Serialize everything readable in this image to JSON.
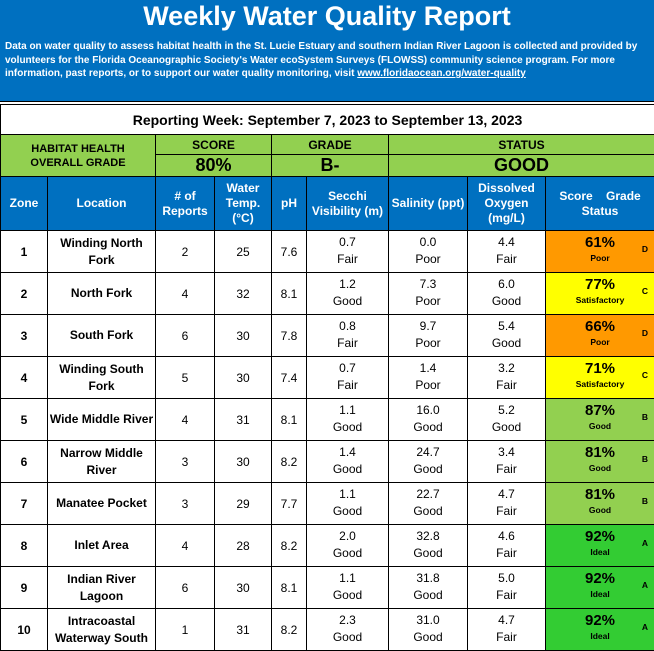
{
  "header": {
    "title": "Weekly Water Quality Report",
    "description": "Data on water quality to assess habitat health in the St. Lucie Estuary and southern Indian River Lagoon is collected and provided by volunteers for the Florida Oceanographic Society's Water ecoSystem Surveys (FLOWSS) community science program.  For more information, past reports, or to support our water quality monitoring, visit ",
    "link": "www.floridaocean.org/water-quality"
  },
  "reporting_week": "Reporting Week: September 7, 2023 to September 13, 2023",
  "summary": {
    "habitat_label_1": "HABITAT HEALTH",
    "habitat_label_2": "OVERALL GRADE",
    "score_label": "SCORE",
    "score_value": "80%",
    "grade_label": "GRADE",
    "grade_value": "B-",
    "status_label": "STATUS",
    "status_value": "GOOD"
  },
  "columns": {
    "zone": "Zone",
    "location": "Location",
    "reports_1": "# of",
    "reports_2": "Reports",
    "temp_1": "Water",
    "temp_2": "Temp.",
    "temp_3": "(°C)",
    "ph": "pH",
    "secchi_1": "Secchi",
    "secchi_2": "Visibility (m)",
    "salinity": "Salinity (ppt)",
    "do_1": "Dissolved",
    "do_2": "Oxygen",
    "do_3": "(mg/L)",
    "score_1": "Score",
    "score_2": "Grade",
    "score_3": "Status"
  },
  "colors": {
    "header_blue": "#0070c0",
    "summary_green": "#92d050",
    "ideal": "#33cc33",
    "good": "#92d050",
    "satisfactory": "#ffff00",
    "poor": "#ff9900"
  },
  "rows": [
    {
      "zone": "1",
      "location": "Winding North Fork",
      "reports": "2",
      "temp": "25",
      "ph": "7.6",
      "secchi": "0.7",
      "secchi_q": "Fair",
      "salinity": "0.0",
      "salinity_q": "Poor",
      "do": "4.4",
      "do_q": "Fair",
      "score": "61%",
      "grade": "D",
      "status": "Poor",
      "status_color": "#ff9900"
    },
    {
      "zone": "2",
      "location": "North Fork",
      "reports": "4",
      "temp": "32",
      "ph": "8.1",
      "secchi": "1.2",
      "secchi_q": "Good",
      "salinity": "7.3",
      "salinity_q": "Poor",
      "do": "6.0",
      "do_q": "Good",
      "score": "77%",
      "grade": "C",
      "status": "Satisfactory",
      "status_color": "#ffff00"
    },
    {
      "zone": "3",
      "location": "South Fork",
      "reports": "6",
      "temp": "30",
      "ph": "7.8",
      "secchi": "0.8",
      "secchi_q": "Fair",
      "salinity": "9.7",
      "salinity_q": "Poor",
      "do": "5.4",
      "do_q": "Good",
      "score": "66%",
      "grade": "D",
      "status": "Poor",
      "status_color": "#ff9900"
    },
    {
      "zone": "4",
      "location": "Winding South Fork",
      "reports": "5",
      "temp": "30",
      "ph": "7.4",
      "secchi": "0.7",
      "secchi_q": "Fair",
      "salinity": "1.4",
      "salinity_q": "Poor",
      "do": "3.2",
      "do_q": "Fair",
      "score": "71%",
      "grade": "C",
      "status": "Satisfactory",
      "status_color": "#ffff00"
    },
    {
      "zone": "5",
      "location": "Wide Middle River",
      "reports": "4",
      "temp": "31",
      "ph": "8.1",
      "secchi": "1.1",
      "secchi_q": "Good",
      "salinity": "16.0",
      "salinity_q": "Good",
      "do": "5.2",
      "do_q": "Good",
      "score": "87%",
      "grade": "B",
      "status": "Good",
      "status_color": "#92d050"
    },
    {
      "zone": "6",
      "location": "Narrow Middle River",
      "reports": "3",
      "temp": "30",
      "ph": "8.2",
      "secchi": "1.4",
      "secchi_q": "Good",
      "salinity": "24.7",
      "salinity_q": "Good",
      "do": "3.4",
      "do_q": "Fair",
      "score": "81%",
      "grade": "B",
      "status": "Good",
      "status_color": "#92d050"
    },
    {
      "zone": "7",
      "location": "Manatee Pocket",
      "reports": "3",
      "temp": "29",
      "ph": "7.7",
      "secchi": "1.1",
      "secchi_q": "Good",
      "salinity": "22.7",
      "salinity_q": "Good",
      "do": "4.7",
      "do_q": "Fair",
      "score": "81%",
      "grade": "B",
      "status": "Good",
      "status_color": "#92d050"
    },
    {
      "zone": "8",
      "location": "Inlet Area",
      "reports": "4",
      "temp": "28",
      "ph": "8.2",
      "secchi": "2.0",
      "secchi_q": "Good",
      "salinity": "32.8",
      "salinity_q": "Good",
      "do": "4.6",
      "do_q": "Fair",
      "score": "92%",
      "grade": "A",
      "status": "Ideal",
      "status_color": "#33cc33"
    },
    {
      "zone": "9",
      "location": "Indian River Lagoon",
      "reports": "6",
      "temp": "30",
      "ph": "8.1",
      "secchi": "1.1",
      "secchi_q": "Good",
      "salinity": "31.8",
      "salinity_q": "Good",
      "do": "5.0",
      "do_q": "Fair",
      "score": "92%",
      "grade": "A",
      "status": "Ideal",
      "status_color": "#33cc33"
    },
    {
      "zone": "10",
      "location": "Intracoastal Waterway South",
      "reports": "1",
      "temp": "31",
      "ph": "8.2",
      "secchi": "2.3",
      "secchi_q": "Good",
      "salinity": "31.0",
      "salinity_q": "Good",
      "do": "4.7",
      "do_q": "Fair",
      "score": "92%",
      "grade": "A",
      "status": "Ideal",
      "status_color": "#33cc33"
    }
  ]
}
